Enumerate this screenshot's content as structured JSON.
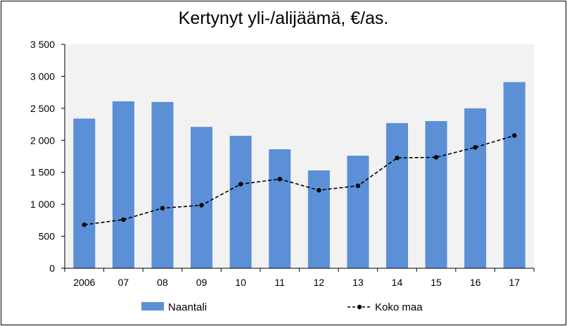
{
  "chart_data": {
    "type": "bar",
    "title": "Kertynyt yli-/alijäämä, €/as.",
    "xlabel": "",
    "ylabel": "",
    "categories": [
      "2006",
      "07",
      "08",
      "09",
      "10",
      "11",
      "12",
      "13",
      "14",
      "15",
      "16",
      "17"
    ],
    "ylim": [
      0,
      3500
    ],
    "yticks": [
      0,
      500,
      1000,
      1500,
      2000,
      2500,
      3000,
      3500
    ],
    "ytick_labels": [
      "0",
      "500",
      "1 000",
      "1 500",
      "2 000",
      "2 500",
      "3 000",
      "3 500"
    ],
    "grid": false,
    "legend_position": "bottom",
    "series": [
      {
        "name": "Naantali",
        "type": "bar",
        "color": "#5b8fd6",
        "values": [
          2340,
          2610,
          2600,
          2210,
          2070,
          1860,
          1530,
          1760,
          2270,
          2300,
          2500,
          2910
        ]
      },
      {
        "name": "Koko maa",
        "type": "line",
        "style": "dashed",
        "marker": "circle",
        "color": "#000000",
        "values": [
          680,
          760,
          940,
          985,
          1315,
          1395,
          1220,
          1290,
          1725,
          1735,
          1890,
          2075
        ]
      }
    ]
  }
}
